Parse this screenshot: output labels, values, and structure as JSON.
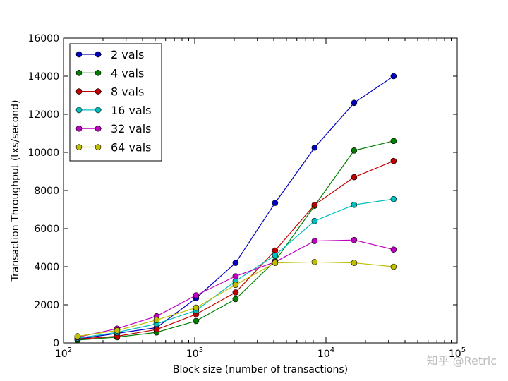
{
  "chart_data": {
    "type": "line",
    "xlabel": "Block size (number of transactions)",
    "ylabel": "Transaction Throughput (txs/second)",
    "xscale": "log",
    "xlim": [
      100,
      100000
    ],
    "ylim": [
      0,
      16000
    ],
    "x_tick_labels": [
      {
        "base": "10",
        "exp": "2",
        "value": 100
      },
      {
        "base": "10",
        "exp": "3",
        "value": 1000
      },
      {
        "base": "10",
        "exp": "4",
        "value": 10000
      },
      {
        "base": "10",
        "exp": "5",
        "value": 100000
      }
    ],
    "y_ticks": [
      0,
      2000,
      4000,
      6000,
      8000,
      10000,
      12000,
      14000,
      16000
    ],
    "grid": false,
    "legend_position": "top-left",
    "x": [
      128,
      256,
      512,
      1024,
      2048,
      4096,
      8192,
      16384,
      32768
    ],
    "series": [
      {
        "name": "2 vals",
        "color": "#0000bf",
        "values": [
          200,
          500,
          800,
          2350,
          4200,
          7350,
          10250,
          12600,
          14000
        ]
      },
      {
        "name": "4 vals",
        "color": "#007f00",
        "values": [
          150,
          300,
          550,
          1150,
          2300,
          4300,
          7200,
          10100,
          10600
        ]
      },
      {
        "name": "8 vals",
        "color": "#bf0000",
        "values": [
          200,
          350,
          700,
          1500,
          2650,
          4850,
          7250,
          8700,
          9550
        ]
      },
      {
        "name": "16 vals",
        "color": "#00bfbf",
        "values": [
          250,
          550,
          1000,
          1700,
          3250,
          4600,
          6400,
          7250,
          7550
        ]
      },
      {
        "name": "32 vals",
        "color": "#bf00bf",
        "values": [
          300,
          750,
          1400,
          2500,
          3500,
          4250,
          5350,
          5400,
          4900
        ]
      },
      {
        "name": "64 vals",
        "color": "#bfbf00",
        "values": [
          350,
          650,
          1200,
          1850,
          3050,
          4200,
          4250,
          4200,
          4000
        ]
      }
    ]
  },
  "watermark": "知乎 @Retric"
}
